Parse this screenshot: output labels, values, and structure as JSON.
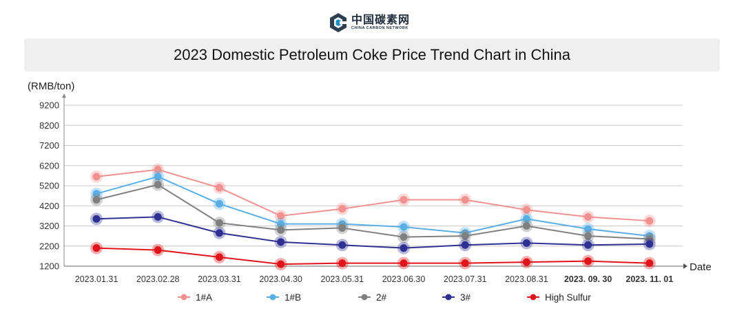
{
  "brand": {
    "name_cn": "中国碳素网",
    "name_en": "CHINA CARBON NETWORK",
    "mark_color": "#2d3e50",
    "accent_color": "#1a8fc7"
  },
  "chart_data": {
    "type": "line",
    "title": "2023 Domestic Petroleum Coke Price Trend Chart in China",
    "ylabel": "(RMB/ton)",
    "xlabel": "Date",
    "ylim": [
      1200,
      9200
    ],
    "yticks": [
      1200,
      2200,
      3200,
      4200,
      5200,
      6200,
      7200,
      8200,
      9200
    ],
    "grid": true,
    "legend_position": "bottom",
    "categories": [
      "2023.01.31",
      "2023.02.28",
      "2023.03.31",
      "2023.04.30",
      "2023.05.31",
      "2023.06.30",
      "2023.07.31",
      "2023.08.31",
      "2023. 09. 30",
      "2023. 11. 01"
    ],
    "series": [
      {
        "name": "1#A",
        "color": "#f0918f",
        "values": [
          5650,
          6000,
          5100,
          3700,
          4050,
          4500,
          4500,
          4000,
          3650,
          3450
        ]
      },
      {
        "name": "1#B",
        "color": "#5aaee6",
        "values": [
          4800,
          5650,
          4300,
          3300,
          3300,
          3150,
          2850,
          3550,
          3050,
          2700
        ]
      },
      {
        "name": "2#",
        "color": "#808080",
        "values": [
          4500,
          5250,
          3350,
          3000,
          3100,
          2650,
          2700,
          3200,
          2700,
          2550
        ]
      },
      {
        "name": "3#",
        "color": "#2e3192",
        "values": [
          3550,
          3650,
          2850,
          2400,
          2250,
          2100,
          2250,
          2350,
          2250,
          2300
        ]
      },
      {
        "name": "High Sulfur",
        "color": "#e0141b",
        "values": [
          2100,
          2000,
          1650,
          1300,
          1350,
          1350,
          1350,
          1400,
          1450,
          1350
        ]
      }
    ]
  }
}
